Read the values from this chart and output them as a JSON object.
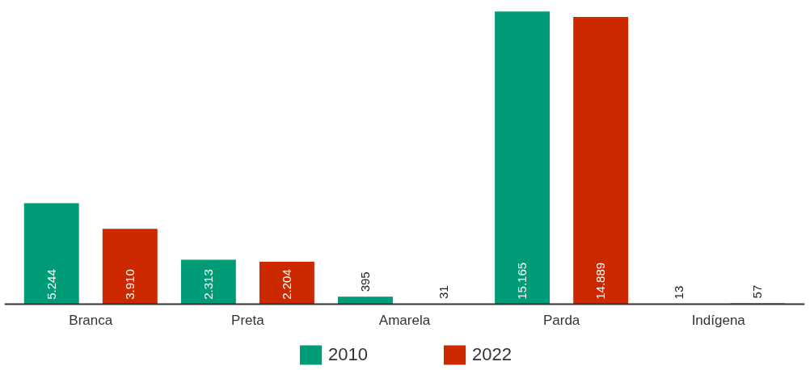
{
  "chart_data": {
    "type": "bar",
    "categories": [
      "Branca",
      "Preta",
      "Amarela",
      "Parda",
      "Indígena"
    ],
    "series": [
      {
        "name": "2010",
        "color": "#009b77",
        "values": [
          5244,
          2313,
          395,
          15165,
          13
        ],
        "value_labels": [
          "5.244",
          "2.313",
          "395",
          "15.165",
          "13"
        ]
      },
      {
        "name": "2022",
        "color": "#cc2900",
        "values": [
          3910,
          2204,
          31,
          14889,
          57
        ],
        "value_labels": [
          "3.910",
          "2.204",
          "31",
          "14.889",
          "57"
        ]
      }
    ],
    "grid": false,
    "legend": "bottom",
    "tick_labels": "x"
  }
}
